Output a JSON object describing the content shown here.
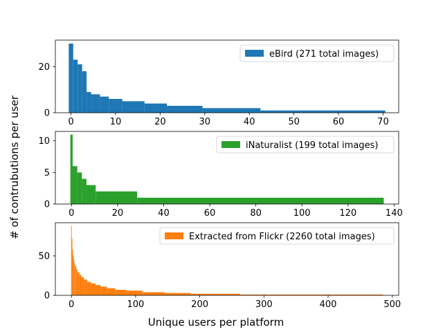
{
  "figure": {
    "xlabel": "Unique users per platform",
    "ylabel": "# of contrubutions per user"
  },
  "chart_data": [
    {
      "type": "bar",
      "legend": "eBird (271 total images)",
      "color": "#1f77b4",
      "xlim": [
        -3.5,
        73.5
      ],
      "ylim": [
        0,
        31.5
      ],
      "xticks": [
        0,
        10,
        20,
        30,
        40,
        50,
        60,
        70
      ],
      "yticks": [
        0,
        20
      ],
      "bars": [
        [
          -0.5,
          0.5,
          30
        ],
        [
          0.5,
          1.5,
          23
        ],
        [
          1.5,
          2.5,
          21
        ],
        [
          2.5,
          3.5,
          18
        ],
        [
          3.5,
          4.5,
          9
        ],
        [
          4.5,
          6.5,
          8
        ],
        [
          6.5,
          8.5,
          7
        ],
        [
          8.5,
          11.5,
          6
        ],
        [
          11.5,
          16.5,
          5
        ],
        [
          16.5,
          21.5,
          4
        ],
        [
          21.5,
          29.5,
          3
        ],
        [
          29.5,
          42.5,
          2
        ],
        [
          42.5,
          70.5,
          1
        ]
      ]
    },
    {
      "type": "bar",
      "legend": "iNaturalist (199 total images)",
      "color": "#2ca02c",
      "xlim": [
        -7,
        142
      ],
      "ylim": [
        0,
        11.5
      ],
      "xticks": [
        0,
        20,
        40,
        60,
        80,
        100,
        120,
        140
      ],
      "yticks": [
        0,
        5,
        10
      ],
      "bars": [
        [
          -0.5,
          0.5,
          11
        ],
        [
          0.5,
          2.5,
          6
        ],
        [
          2.5,
          4.5,
          5
        ],
        [
          4.5,
          6.5,
          4
        ],
        [
          6.5,
          10.5,
          3
        ],
        [
          10.5,
          28.5,
          2
        ],
        [
          28.5,
          135.5,
          1
        ]
      ]
    },
    {
      "type": "bar",
      "legend": "Extracted from Flickr (2260 total images)",
      "color": "#ff7f0e",
      "xlim": [
        -25,
        510
      ],
      "ylim": [
        0,
        92
      ],
      "xticks": [
        0,
        100,
        200,
        300,
        400,
        500
      ],
      "yticks": [
        0,
        50
      ],
      "bars": [
        [
          -0.5,
          0.5,
          88
        ],
        [
          0.5,
          1.5,
          72
        ],
        [
          1.5,
          2.5,
          58
        ],
        [
          2.5,
          3.5,
          50
        ],
        [
          3.5,
          4.5,
          45
        ],
        [
          4.5,
          5.5,
          41
        ],
        [
          5.5,
          7.5,
          37
        ],
        [
          7.5,
          9.5,
          33
        ],
        [
          9.5,
          12.5,
          29
        ],
        [
          12.5,
          15.5,
          26
        ],
        [
          15.5,
          19.5,
          23
        ],
        [
          19.5,
          24.5,
          20
        ],
        [
          24.5,
          30.5,
          17
        ],
        [
          30.5,
          37.5,
          15
        ],
        [
          37.5,
          45.5,
          13
        ],
        [
          45.5,
          55.5,
          11
        ],
        [
          55.5,
          68.5,
          9
        ],
        [
          68.5,
          85.5,
          7
        ],
        [
          85.5,
          110.5,
          6
        ],
        [
          110.5,
          145.5,
          4
        ],
        [
          145.5,
          185.5,
          3
        ],
        [
          185.5,
          262.5,
          2
        ],
        [
          262.5,
          485.5,
          1
        ]
      ]
    }
  ]
}
